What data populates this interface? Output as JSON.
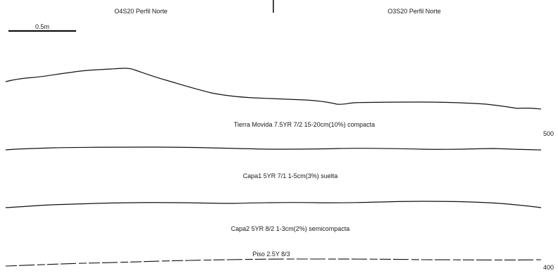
{
  "profiles": {
    "left_title": "O4S20 Perfil Norte",
    "right_title": "O3S20 Perfil Norte"
  },
  "scale": {
    "label": "0.5m"
  },
  "layers": {
    "tierra_movida": "Tierra Movida 7.5YR 7/2 15-20cm(10%) compacta",
    "capa1": "Capa1 5YR 7/1 1-5cm(3%) suelta",
    "capa2": "Capa2 5YR 8/2 1-3cm(2%) semicompacta",
    "piso": "Piso 2.5Y 8/3"
  },
  "elevations": {
    "upper": "500",
    "lower": "400"
  },
  "colors": {
    "line": "#111111",
    "text": "#1a1a1a",
    "background": "#ffffff"
  }
}
